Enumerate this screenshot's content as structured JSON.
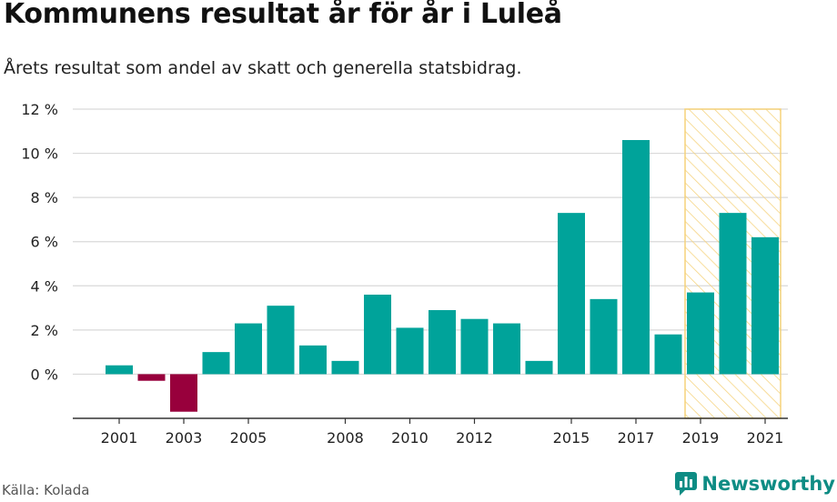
{
  "header": {
    "title": "Kommunens resultat år för år i Luleå",
    "subtitle": "Årets resultat som andel av skatt och generella statsbidrag."
  },
  "footer": {
    "source": "Källa: Kolada",
    "brand": "Newsworthy"
  },
  "colors": {
    "positive": "#00a39a",
    "negative": "#98003c",
    "highlight_stroke": "#f5d27a",
    "grid": "#d9d9d9",
    "axis": "#333333"
  },
  "chart_data": {
    "type": "bar",
    "categories": [
      "2001",
      "2002",
      "2003",
      "2004",
      "2005",
      "2006",
      "2007",
      "2008",
      "2009",
      "2010",
      "2011",
      "2012",
      "2013",
      "2014",
      "2015",
      "2016",
      "2017",
      "2018",
      "2019",
      "2020",
      "2021"
    ],
    "values": [
      0.4,
      -0.3,
      -1.7,
      1.0,
      2.3,
      3.1,
      1.3,
      0.6,
      3.6,
      2.1,
      2.9,
      2.5,
      2.3,
      0.6,
      7.3,
      3.4,
      10.6,
      1.8,
      3.7,
      7.3,
      6.2
    ],
    "x_tick_labels": [
      "2001",
      "2003",
      "2005",
      "2008",
      "2010",
      "2012",
      "2015",
      "2017",
      "2019",
      "2021"
    ],
    "y_ticks": [
      0,
      2,
      4,
      6,
      8,
      10,
      12
    ],
    "y_tick_format": "{v} %",
    "ylim": [
      -2,
      12
    ],
    "highlight_range": [
      "2019",
      "2021"
    ],
    "grid": true,
    "title": "Kommunens resultat år för år i Luleå",
    "xlabel": "",
    "ylabel": ""
  }
}
